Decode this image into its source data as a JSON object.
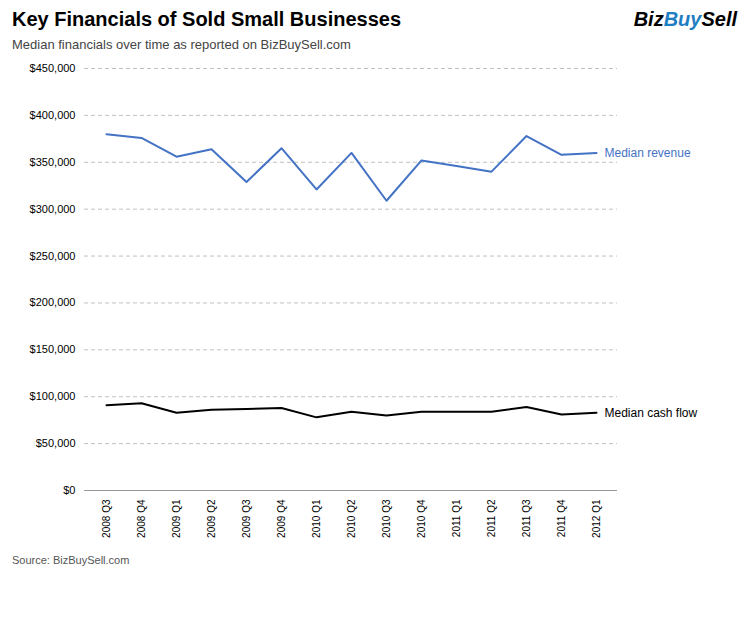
{
  "chart_data": {
    "type": "line",
    "title": "Key Financials of Sold Small Businesses",
    "subtitle": "Median financials over time as reported on BizBuySell.com",
    "source": "Source: BizBuySell.com",
    "logo": [
      {
        "text": "Biz",
        "color": "#000000"
      },
      {
        "text": "Buy",
        "color": "#1F7EC2"
      },
      {
        "text": "Sell",
        "color": "#000000"
      }
    ],
    "categories": [
      "2008 Q3",
      "2008 Q4",
      "2009 Q1",
      "2009 Q2",
      "2009 Q3",
      "2009 Q4",
      "2010 Q1",
      "2010 Q2",
      "2010 Q3",
      "2010 Q4",
      "2011 Q1",
      "2011 Q2",
      "2011 Q3",
      "2011 Q4",
      "2012 Q1"
    ],
    "series": [
      {
        "name": "Median revenue",
        "color": "#4472C4",
        "values": [
          380000,
          376000,
          356000,
          364000,
          329000,
          365000,
          321000,
          360000,
          309000,
          352000,
          346000,
          340000,
          378000,
          358000,
          360000
        ]
      },
      {
        "name": "Median cash flow",
        "color": "#000000",
        "values": [
          91000,
          93000,
          83000,
          86000,
          87000,
          88000,
          78000,
          84000,
          80000,
          84000,
          84000,
          84000,
          89000,
          81000,
          83000
        ]
      }
    ],
    "ylim": [
      0,
      450000
    ],
    "yticks": [
      {
        "value": 0,
        "label": "$0"
      },
      {
        "value": 50000,
        "label": "$50,000"
      },
      {
        "value": 100000,
        "label": "$100,000"
      },
      {
        "value": 150000,
        "label": "$150,000"
      },
      {
        "value": 200000,
        "label": "$200,000"
      },
      {
        "value": 250000,
        "label": "$250,000"
      },
      {
        "value": 300000,
        "label": "$300,000"
      },
      {
        "value": 350000,
        "label": "$350,000"
      },
      {
        "value": 400000,
        "label": "$400,000"
      },
      {
        "value": 450000,
        "label": "$450,000"
      }
    ],
    "grid": true
  }
}
